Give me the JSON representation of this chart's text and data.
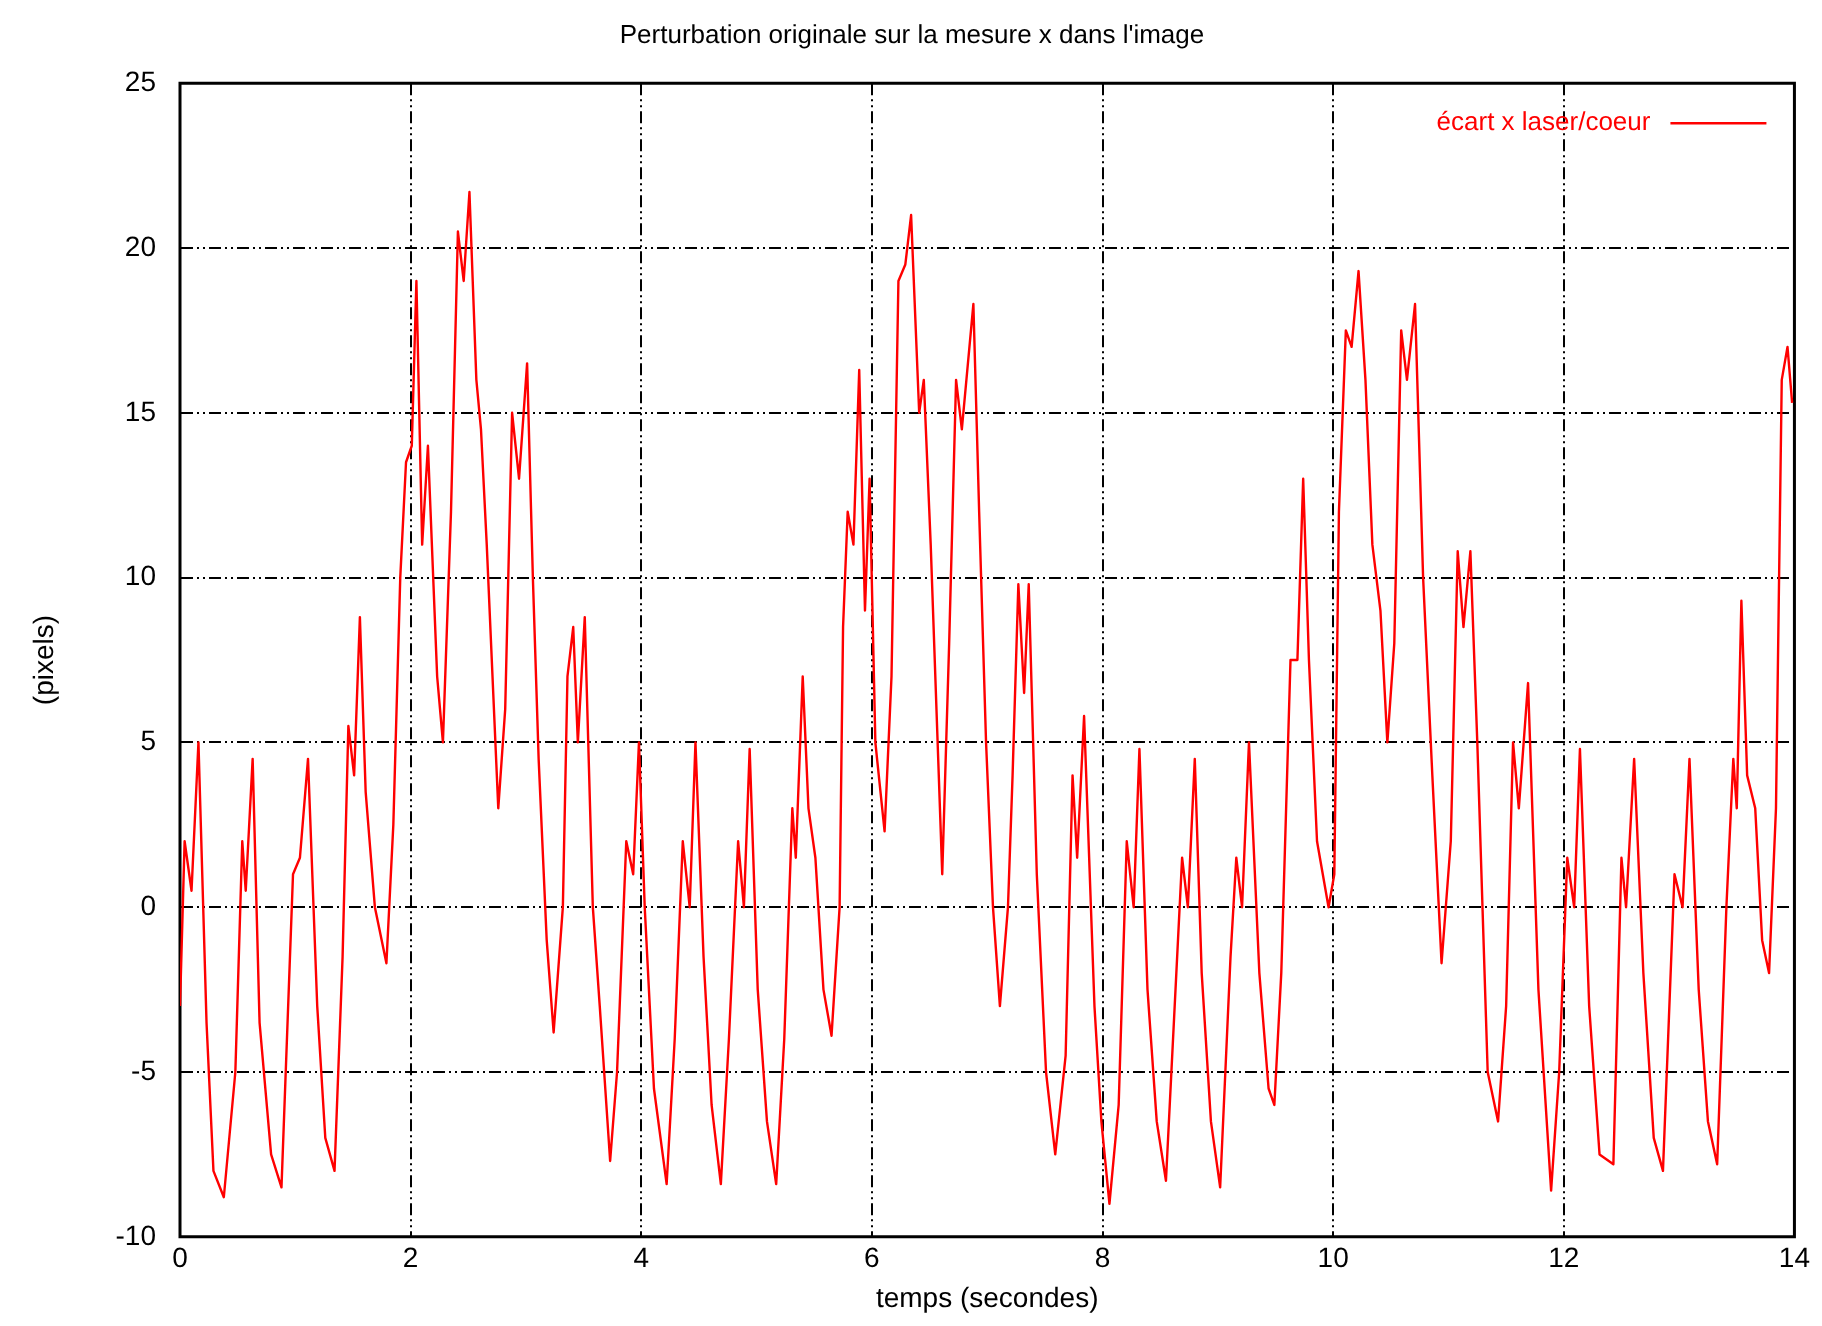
{
  "chart_data": {
    "type": "line",
    "title": "Perturbation originale sur la mesure x dans l'image",
    "xlabel": "temps (secondes)",
    "ylabel": "(pixels)",
    "xlim": [
      0,
      14
    ],
    "xticks": [
      0,
      2,
      4,
      6,
      8,
      10,
      12,
      14
    ],
    "ylim": [
      -10,
      25
    ],
    "yticks": [
      -10,
      -5,
      0,
      5,
      10,
      15,
      20,
      25
    ],
    "grid": true,
    "legend": "top right",
    "marker": "none",
    "line_style": "solid",
    "series": [
      {
        "name": "écart x laser/coeur",
        "color": "#ff0000",
        "x": [
          0,
          0.04,
          0.1,
          0.16,
          0.23,
          0.29,
          0.38,
          0.48,
          0.54,
          0.57,
          0.63,
          0.69,
          0.79,
          0.88,
          0.98,
          1.04,
          1.11,
          1.19,
          1.26,
          1.34,
          1.41,
          1.46,
          1.51,
          1.56,
          1.61,
          1.69,
          1.79,
          1.85,
          1.91,
          1.96,
          2.01,
          2.05,
          2.1,
          2.15,
          2.23,
          2.28,
          2.35,
          2.41,
          2.46,
          2.51,
          2.57,
          2.61,
          2.66,
          2.76,
          2.82,
          2.88,
          2.94,
          3.01,
          3.06,
          3.11,
          3.18,
          3.24,
          3.32,
          3.36,
          3.41,
          3.45,
          3.51,
          3.58,
          3.64,
          3.73,
          3.79,
          3.87,
          3.93,
          3.98,
          4.03,
          4.11,
          4.22,
          4.29,
          4.36,
          4.42,
          4.47,
          4.54,
          4.61,
          4.69,
          4.76,
          4.84,
          4.89,
          4.94,
          5.01,
          5.09,
          5.17,
          5.24,
          5.31,
          5.34,
          5.4,
          5.45,
          5.51,
          5.58,
          5.65,
          5.72,
          5.75,
          5.79,
          5.84,
          5.89,
          5.94,
          5.98,
          6.03,
          6.11,
          6.17,
          6.23,
          6.29,
          6.34,
          6.41,
          6.45,
          6.51,
          6.61,
          6.67,
          6.73,
          6.78,
          6.88,
          6.93,
          6.99,
          7.05,
          7.11,
          7.18,
          7.22,
          7.27,
          7.32,
          7.36,
          7.43,
          7.51,
          7.59,
          7.68,
          7.74,
          7.78,
          7.84,
          7.93,
          7.99,
          8.06,
          8.14,
          8.21,
          8.27,
          8.32,
          8.39,
          8.47,
          8.55,
          8.64,
          8.69,
          8.74,
          8.8,
          8.86,
          8.94,
          9.02,
          9.11,
          9.16,
          9.21,
          9.27,
          9.36,
          9.44,
          9.49,
          9.55,
          9.63,
          9.69,
          9.74,
          9.79,
          9.86,
          9.96,
          10.01,
          10.05,
          10.11,
          10.16,
          10.22,
          10.28,
          10.34,
          10.41,
          10.47,
          10.53,
          10.59,
          10.64,
          10.71,
          10.78,
          10.86,
          10.94,
          11.02,
          11.08,
          11.13,
          11.19,
          11.25,
          11.34,
          11.43,
          11.5,
          11.56,
          11.61,
          11.69,
          11.78,
          11.89,
          11.96,
          12.03,
          12.09,
          12.14,
          12.22,
          12.31,
          12.43,
          12.5,
          12.54,
          12.61,
          12.69,
          12.78,
          12.86,
          12.96,
          13.03,
          13.09,
          13.17,
          13.25,
          13.33,
          13.41,
          13.47,
          13.5,
          13.54,
          13.59,
          13.66,
          13.72,
          13.78,
          13.84,
          13.89,
          13.94,
          13.98
        ],
        "values": [
          -3,
          2,
          0.5,
          5,
          -3.5,
          -8,
          -8.8,
          -5,
          2,
          0.5,
          4.5,
          -3.5,
          -7.5,
          -8.5,
          1,
          1.5,
          4.5,
          -3,
          -7,
          -8,
          -1.5,
          5.5,
          4,
          8.8,
          3.5,
          0,
          -1.7,
          2.5,
          10,
          13.5,
          14,
          19,
          11,
          14,
          7,
          5,
          12,
          20.5,
          19,
          21.7,
          16,
          14.5,
          11,
          3,
          6,
          15,
          13,
          16.5,
          10,
          4.5,
          -1,
          -3.8,
          0,
          7,
          8.5,
          5,
          8.8,
          0,
          -3,
          -7.7,
          -5,
          2,
          1,
          5,
          0,
          -5.5,
          -8.4,
          -4,
          2,
          0,
          5,
          -1.5,
          -6,
          -8.4,
          -4,
          2,
          0,
          4.8,
          -2.5,
          -6.5,
          -8.4,
          -4,
          3,
          1.5,
          7,
          3,
          1.5,
          -2.5,
          -3.9,
          0,
          8.5,
          12,
          11,
          16.3,
          9,
          13,
          5,
          2.3,
          7,
          19,
          19.5,
          21,
          15,
          16,
          11,
          1,
          8,
          16,
          14.5,
          18.3,
          12,
          5,
          0,
          -3,
          0,
          4,
          9.8,
          6.5,
          9.8,
          1,
          -5,
          -7.5,
          -4.5,
          4,
          1.5,
          5.8,
          -3,
          -6.5,
          -9,
          -6,
          2,
          0,
          4.8,
          -2.5,
          -6.5,
          -8.3,
          -2,
          1.5,
          0,
          4.5,
          -2,
          -6.5,
          -8.5,
          -1.5,
          1.5,
          0,
          5,
          -2,
          -5.5,
          -6,
          -2,
          7.5,
          7.5,
          13,
          7.5,
          2,
          0,
          1,
          12,
          17.5,
          17,
          19.3,
          16,
          11,
          9,
          5,
          8,
          17.5,
          16,
          18.3,
          10,
          4,
          -1.7,
          2,
          10.8,
          8.5,
          10.8,
          5,
          -5,
          -6.5,
          -3,
          5,
          3,
          6.8,
          -2.5,
          -8.6,
          -5,
          1.5,
          0,
          4.8,
          -3,
          -7.5,
          -7.8,
          1.5,
          0,
          4.5,
          -2,
          -7,
          -8,
          1,
          0,
          4.5,
          -2.5,
          -6.5,
          -7.8,
          0,
          4.5,
          3,
          9.3,
          4,
          3,
          -1,
          -2,
          3,
          16,
          17,
          15.3
        ]
      }
    ]
  }
}
